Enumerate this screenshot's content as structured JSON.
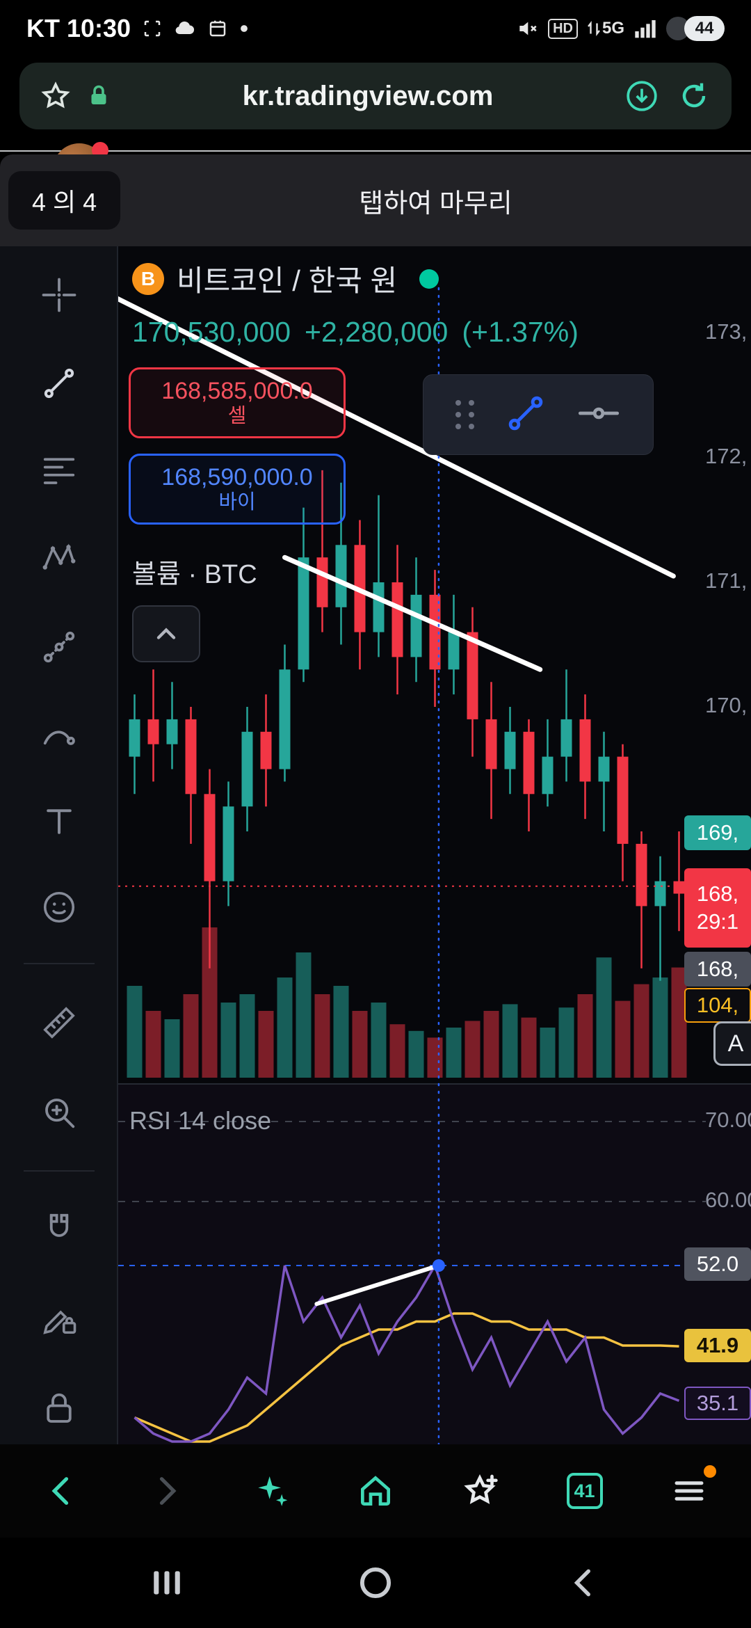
{
  "status_bar": {
    "left": "KT 10:30",
    "hd": "HD",
    "network": "5G",
    "battery": "44"
  },
  "url_bar": {
    "url": "kr.tradingview.com"
  },
  "coachmark": {
    "step": "4 의 4",
    "instruction": "탭하여 마무리"
  },
  "header": {
    "symbol": "비트코인 / 한국 원",
    "price": "170,530,000",
    "change": "+2,280,000",
    "change_pct": "(+1.37%)"
  },
  "order_panel": {
    "sell_price": "168,585,000.0",
    "sell_label": "셀",
    "buy_price": "168,590,000.0",
    "buy_label": "바이"
  },
  "volume_pane": {
    "label": "볼륨 · BTC"
  },
  "price_axis": {
    "labels": [
      {
        "text": "173,"
      },
      {
        "text": "172,"
      },
      {
        "text": "171,"
      },
      {
        "text": "170,"
      }
    ],
    "last_badge": "169,",
    "countdown_price": "168,",
    "countdown_time": "29:1",
    "crosshair_badge": "168,",
    "volume_badge": "104,",
    "auto_scale": "A"
  },
  "rsi_pane": {
    "label": "RSI 14 close",
    "level_70": "70.00",
    "level_60": "60.00",
    "crosshair_value": "52.0",
    "ma_value": "41.9",
    "last_value": "35.1"
  },
  "browser_bar": {
    "tabs_count": "41"
  },
  "chart_data": {
    "type": "candlestick",
    "title": "비트코인 / 한국 원",
    "price_unit": "million KRW",
    "y_axis": {
      "min": 167.5,
      "max": 173.5,
      "ticks": [
        173,
        172,
        171,
        170,
        169,
        168
      ]
    },
    "colors": {
      "up": "#26a69a",
      "down": "#f23645",
      "rsi": "#7e57c2",
      "rsi_ma": "#f5c342",
      "crosshair": "#2962ff",
      "trendline": "#ffffff"
    },
    "candles": [
      [
        169.6,
        170.1,
        169.3,
        169.9
      ],
      [
        169.9,
        170.3,
        169.4,
        169.7
      ],
      [
        169.7,
        170.2,
        169.5,
        169.9
      ],
      [
        169.9,
        170.0,
        168.9,
        169.3
      ],
      [
        169.3,
        169.5,
        167.9,
        168.6
      ],
      [
        168.6,
        169.4,
        168.4,
        169.2
      ],
      [
        169.2,
        170.0,
        169.0,
        169.8
      ],
      [
        169.8,
        170.1,
        169.2,
        169.5
      ],
      [
        169.5,
        170.5,
        169.4,
        170.3
      ],
      [
        170.3,
        171.6,
        170.2,
        171.2
      ],
      [
        171.2,
        171.9,
        170.6,
        170.8
      ],
      [
        170.8,
        171.8,
        170.5,
        171.3
      ],
      [
        171.3,
        171.5,
        170.3,
        170.6
      ],
      [
        170.6,
        171.7,
        170.4,
        171.0
      ],
      [
        171.0,
        171.3,
        170.1,
        170.4
      ],
      [
        170.4,
        171.2,
        170.2,
        170.9
      ],
      [
        170.9,
        171.1,
        170.0,
        170.3
      ],
      [
        170.3,
        170.9,
        170.1,
        170.6
      ],
      [
        170.6,
        170.8,
        169.6,
        169.9
      ],
      [
        169.9,
        170.2,
        169.1,
        169.5
      ],
      [
        169.5,
        170.0,
        169.3,
        169.8
      ],
      [
        169.8,
        169.9,
        169.0,
        169.3
      ],
      [
        169.3,
        169.9,
        169.2,
        169.6
      ],
      [
        169.6,
        170.3,
        169.4,
        169.9
      ],
      [
        169.9,
        170.1,
        169.1,
        169.4
      ],
      [
        169.4,
        169.8,
        169.0,
        169.6
      ],
      [
        169.6,
        169.7,
        168.6,
        168.9
      ],
      [
        168.9,
        169.0,
        167.9,
        168.4
      ],
      [
        168.4,
        168.8,
        167.8,
        168.6
      ],
      [
        168.6,
        169.0,
        168.2,
        168.5
      ]
    ],
    "volume": [
      0.55,
      0.4,
      0.35,
      0.5,
      0.9,
      0.45,
      0.5,
      0.4,
      0.6,
      0.75,
      0.5,
      0.55,
      0.4,
      0.45,
      0.32,
      0.28,
      0.24,
      0.3,
      0.34,
      0.4,
      0.44,
      0.36,
      0.3,
      0.42,
      0.5,
      0.72,
      0.46,
      0.56,
      0.6,
      0.66
    ],
    "rsi": {
      "label": "RSI 14 close",
      "levels": [
        70,
        60
      ],
      "values": [
        33,
        31,
        30,
        30,
        31,
        34,
        38,
        36,
        52,
        45,
        48,
        43,
        47,
        41,
        45,
        48,
        52,
        45,
        39,
        43,
        37,
        41,
        45,
        40,
        43,
        34,
        31,
        33,
        36,
        35.1
      ],
      "ma": [
        33,
        32,
        31,
        30,
        30,
        31,
        32,
        34,
        36,
        38,
        40,
        42,
        43,
        44,
        44,
        45,
        45,
        46,
        46,
        45,
        45,
        44,
        44,
        44,
        43,
        43,
        42,
        42,
        42,
        41.9
      ],
      "crosshair_value": 52.0,
      "last_value": 35.1,
      "ma_value": 41.9
    },
    "overlays": {
      "trendlines_price": [
        {
          "from_index": -1.2,
          "from_price": 173.3,
          "to_index": 28.7,
          "to_price": 171.05
        },
        {
          "from_index": 8.0,
          "from_price": 171.2,
          "to_index": 21.6,
          "to_price": 170.3
        }
      ],
      "trendline_rsi": {
        "from_index": 9.7,
        "from_value": 47.2,
        "to_index": 16.2,
        "to_value": 52.0
      },
      "crosshair_index": 16.2,
      "price_line": 168.56
    }
  }
}
